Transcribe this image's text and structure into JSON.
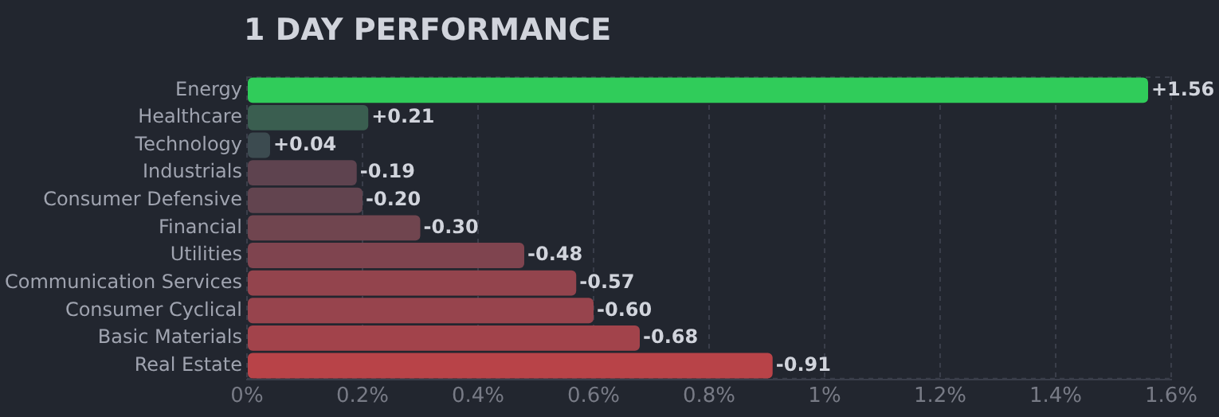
{
  "chart_data": {
    "type": "bar",
    "orientation": "horizontal",
    "title": "1 DAY PERFORMANCE",
    "categories": [
      "Energy",
      "Healthcare",
      "Technology",
      "Industrials",
      "Consumer Defensive",
      "Financial",
      "Utilities",
      "Communication Services",
      "Consumer Cyclical",
      "Basic Materials",
      "Real Estate"
    ],
    "values": [
      1.56,
      0.21,
      0.04,
      -0.19,
      -0.2,
      -0.3,
      -0.48,
      -0.57,
      -0.6,
      -0.68,
      -0.91
    ],
    "base": [
      0,
      0,
      0,
      0.19,
      0.2,
      0.3,
      0.48,
      0.57,
      0.6,
      0.68,
      0.91
    ],
    "value_labels": [
      "+1.56",
      "+0.21",
      "+0.04",
      "-0.19",
      "-0.20",
      "-0.30",
      "-0.48",
      "-0.57",
      "-0.60",
      "-0.68",
      "-0.91"
    ],
    "colors": [
      "#30cc5a",
      "#3a5e50",
      "#3c4b50",
      "#5e434f",
      "#62444f",
      "#70454f",
      "#7f444f",
      "#93444d",
      "#97444d",
      "#a2434b",
      "#b84348"
    ],
    "xlim": [
      0,
      1.6
    ],
    "xticks": [
      {
        "value": 0,
        "label": "0%"
      },
      {
        "value": 0.2,
        "label": "0.2%"
      },
      {
        "value": 0.4,
        "label": "0.4%"
      },
      {
        "value": 0.6,
        "label": "0.6%"
      },
      {
        "value": 0.8,
        "label": "0.8%"
      },
      {
        "value": 1,
        "label": "1%"
      },
      {
        "value": 1.2,
        "label": "1.2%"
      },
      {
        "value": 1.4,
        "label": "1.4%"
      },
      {
        "value": 1.6,
        "label": "1.6%"
      }
    ],
    "grid": "x",
    "legend": false
  }
}
